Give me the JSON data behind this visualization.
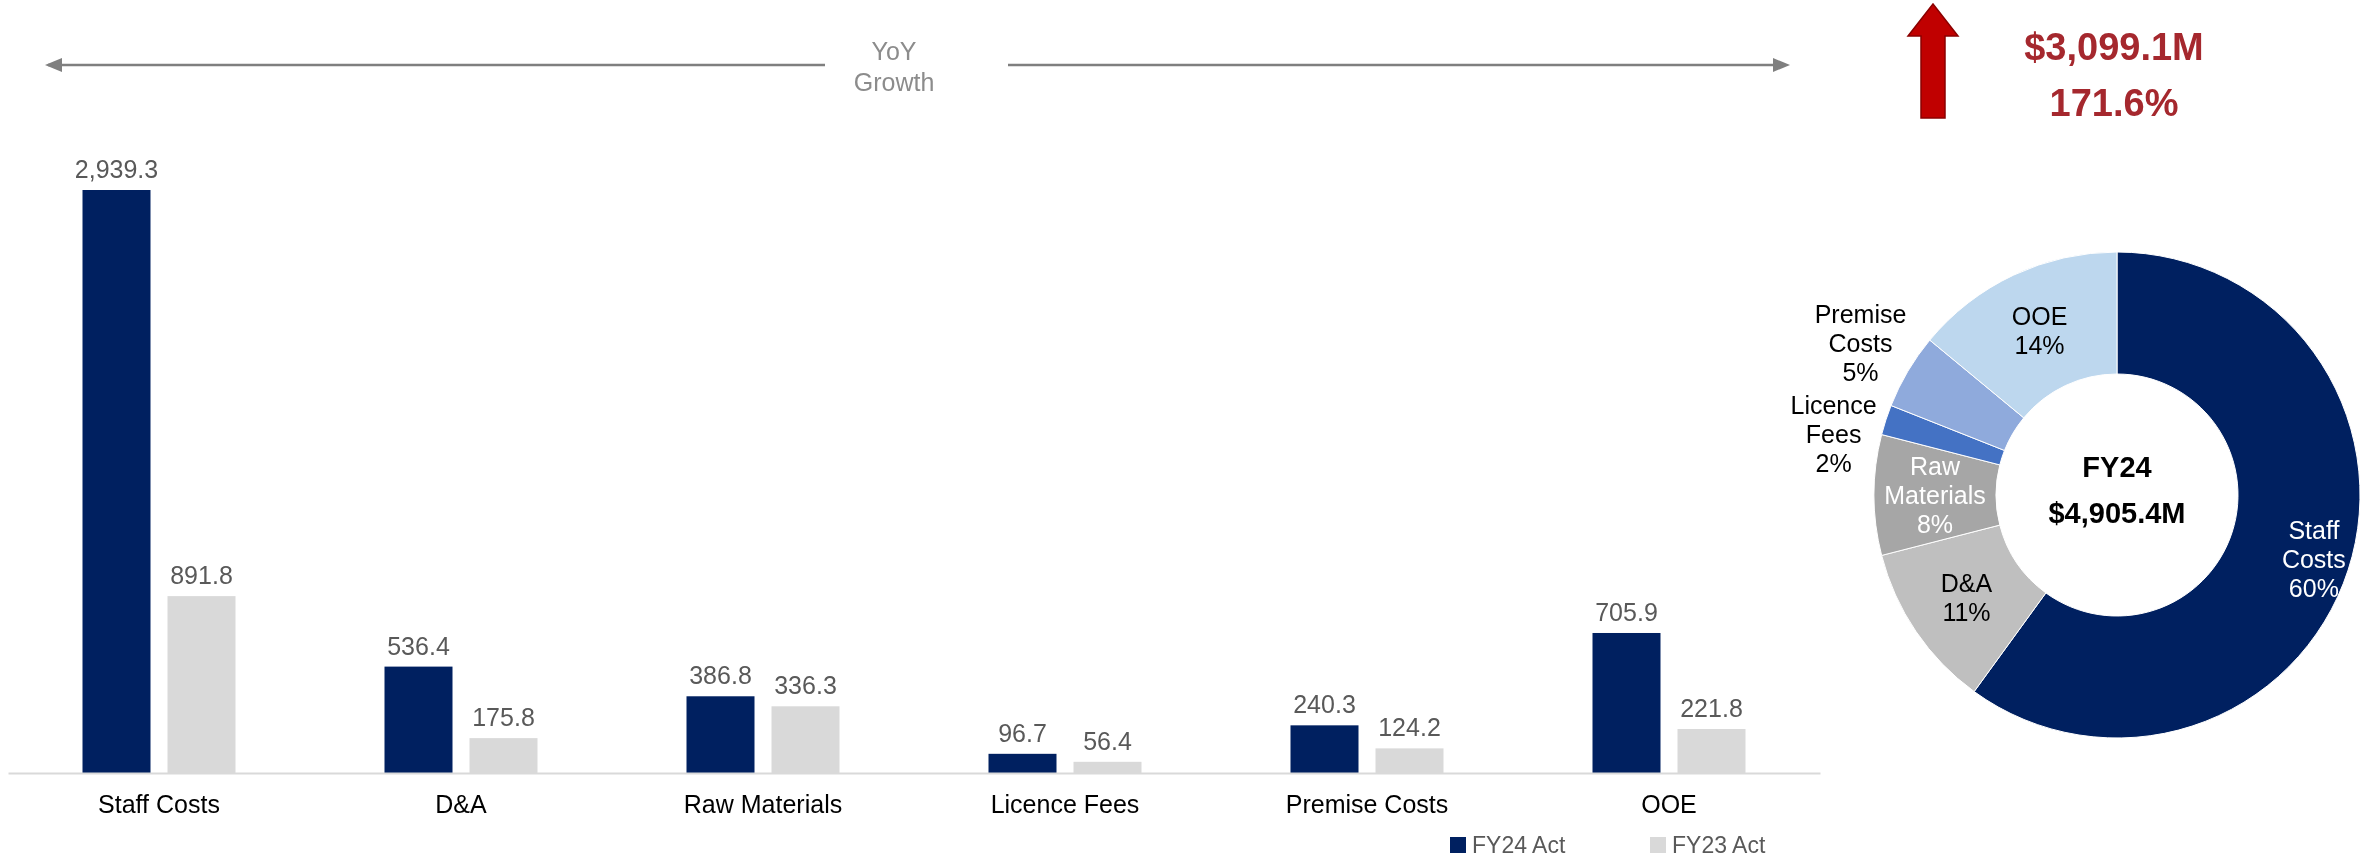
{
  "chart_data": [
    {
      "type": "bar",
      "title": "YoY Growth",
      "categories": [
        "Staff Costs",
        "D&A",
        "Raw Materials",
        "Licence Fees",
        "Premise Costs",
        "OOE"
      ],
      "series": [
        {
          "name": "FY24 Act",
          "color": "#002060",
          "values": [
            2939.3,
            536.4,
            386.8,
            96.7,
            240.3,
            705.9
          ],
          "value_labels": [
            "2,939.3",
            "536.4",
            "386.8",
            "96.7",
            "240.3",
            "705.9"
          ]
        },
        {
          "name": "FY23 Act",
          "color": "#d9d9d9",
          "values": [
            891.8,
            175.8,
            336.3,
            56.4,
            124.2,
            221.8
          ],
          "value_labels": [
            "891.8",
            "175.8",
            "336.3",
            "56.4",
            "124.2",
            "221.8"
          ]
        }
      ],
      "data_labels": true,
      "legend": "bottom right",
      "grid": false
    },
    {
      "type": "donut",
      "title": "FY24",
      "subtitle": "$4,905.4M",
      "categories": [
        "Staff Costs",
        "D&A",
        "Raw Materials",
        "Licence Fees",
        "Premise Costs",
        "OOE"
      ],
      "values": [
        60,
        11,
        8,
        2,
        5,
        14
      ],
      "value_labels": [
        "60%",
        "11%",
        "8%",
        "2%",
        "5%",
        "14%"
      ],
      "colors": [
        "#002060",
        "#bfbfbf",
        "#a6a6a6",
        "#4472c4",
        "#8faadc",
        "#bdd7ee"
      ],
      "annotations": [
        "$3,099.1M",
        "171.6%"
      ]
    }
  ]
}
